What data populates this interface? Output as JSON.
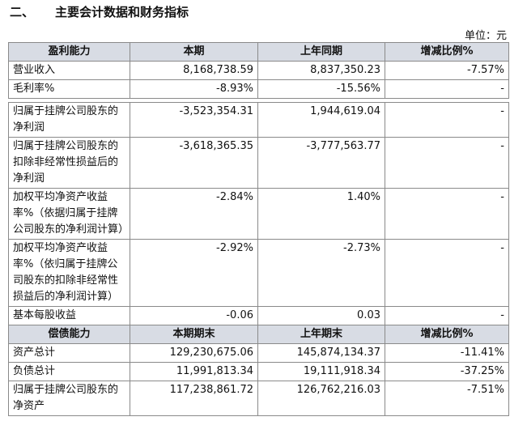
{
  "heading": {
    "number": "二、",
    "title": "主要会计数据和财务指标"
  },
  "unit": "单位：元",
  "profitability": {
    "header": [
      "盈利能力",
      "本期",
      "上年同期",
      "增减比例%"
    ],
    "rows": [
      [
        "营业收入",
        "8,168,738.59",
        "8,837,350.23",
        "-7.57%"
      ],
      [
        "毛利率%",
        "-8.93%",
        "-15.56%",
        "-"
      ],
      [
        "归属于挂牌公司股东的净利润",
        "-3,523,354.31",
        "1,944,619.04",
        "-"
      ],
      [
        "归属于挂牌公司股东的扣除非经常性损益后的净利润",
        "-3,618,365.35",
        "-3,777,563.77",
        "-"
      ],
      [
        "加权平均净资产收益率%（依据归属于挂牌公司股东的净利润计算）",
        "-2.84%",
        "1.40%",
        "-"
      ],
      [
        "加权平均净资产收益率%（依归属于挂牌公司股东的扣除非经常性损益后的净利润计算）",
        "-2.92%",
        "-2.73%",
        "-"
      ],
      [
        "基本每股收益",
        "-0.06",
        "0.03",
        "-"
      ]
    ]
  },
  "solvency": {
    "header": [
      "偿债能力",
      "本期期末",
      "上年期末",
      "增减比例%"
    ],
    "rows": [
      [
        "资产总计",
        "129,230,675.06",
        "145,874,134.37",
        "-11.41%"
      ],
      [
        "负债总计",
        "11,991,813.34",
        "19,111,918.34",
        "-37.25%"
      ],
      [
        "归属于挂牌公司股东的净资产",
        "117,238,861.72",
        "126,762,216.03",
        "-7.51%"
      ]
    ]
  }
}
